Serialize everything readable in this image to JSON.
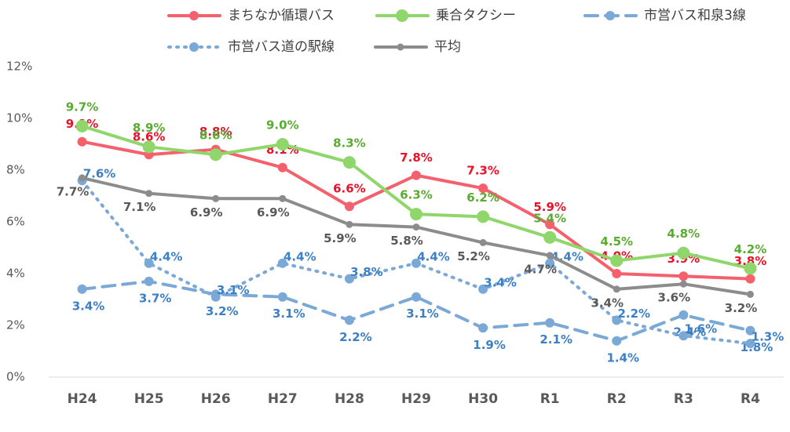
{
  "chart_data": {
    "type": "line",
    "categories": [
      "H24",
      "H25",
      "H26",
      "H27",
      "H28",
      "H29",
      "H30",
      "R1",
      "R2",
      "R3",
      "R4"
    ],
    "series": [
      {
        "name": "まちなか循環バス",
        "color": "#f4606c",
        "label_color": "#e8132a",
        "style": "solid",
        "values": [
          9.1,
          8.6,
          8.8,
          8.1,
          6.6,
          7.8,
          7.3,
          5.9,
          4.0,
          3.9,
          3.8
        ],
        "value_labels": [
          "9.1%",
          "8.6%",
          "8.8%",
          "8.1%",
          "6.6%",
          "7.8%",
          "7.3%",
          "5.9%",
          "4.0%",
          "3.9%",
          "3.8%"
        ]
      },
      {
        "name": "乗合タクシー",
        "color": "#8fd66b",
        "label_color": "#5aab32",
        "style": "solid",
        "values": [
          9.7,
          8.9,
          8.6,
          9.0,
          8.3,
          6.3,
          6.2,
          5.4,
          4.5,
          4.8,
          4.2
        ],
        "value_labels": [
          "9.7%",
          "8.9%",
          "8.6%",
          "9.0%",
          "8.3%",
          "6.3%",
          "6.2%",
          "5.4%",
          "4.5%",
          "4.8%",
          "4.2%"
        ]
      },
      {
        "name": "市営バス和泉3線",
        "color": "#7aa9d8",
        "label_color": "#3b7fc4",
        "style": "dashed",
        "values": [
          3.4,
          3.7,
          3.2,
          3.1,
          2.2,
          3.1,
          1.9,
          2.1,
          1.4,
          2.4,
          1.8
        ],
        "value_labels": [
          "3.4%",
          "3.7%",
          "3.2%",
          "3.1%",
          "2.2%",
          "3.1%",
          "1.9%",
          "2.1%",
          "1.4%",
          "2.4%",
          "1.8%"
        ]
      },
      {
        "name": "市営バス道の駅線",
        "color": "#7aa9d8",
        "label_color": "#3b7fc4",
        "style": "dotted",
        "values": [
          7.6,
          4.4,
          3.1,
          4.4,
          3.8,
          4.4,
          3.4,
          4.4,
          2.2,
          1.6,
          1.3
        ],
        "value_labels": [
          "7.6%",
          "4.4%",
          "3.1%",
          "4.4%",
          "3.8%",
          "4.4%",
          "3.4%",
          "4.4%",
          "2.2%",
          "1.6%",
          "1.3%"
        ]
      },
      {
        "name": "平均",
        "color": "#8c8c8c",
        "label_color": "#595959",
        "style": "solid",
        "values": [
          7.7,
          7.1,
          6.9,
          6.9,
          5.9,
          5.8,
          5.2,
          4.7,
          3.4,
          3.6,
          3.2
        ],
        "value_labels": [
          "7.7%",
          "7.1%",
          "6.9%",
          "6.9%",
          "5.9%",
          "5.8%",
          "5.2%",
          "4.7%",
          "3.4%",
          "3.6%",
          "3.2%"
        ]
      }
    ],
    "ylim": [
      0,
      12
    ],
    "yticks": [
      {
        "value": 0,
        "label": "0%"
      },
      {
        "value": 2,
        "label": "2%"
      },
      {
        "value": 4,
        "label": "4%"
      },
      {
        "value": 6,
        "label": "6%"
      },
      {
        "value": 8,
        "label": "8%"
      },
      {
        "value": 10,
        "label": "10%"
      },
      {
        "value": 12,
        "label": "12%"
      }
    ],
    "legend": "top"
  }
}
